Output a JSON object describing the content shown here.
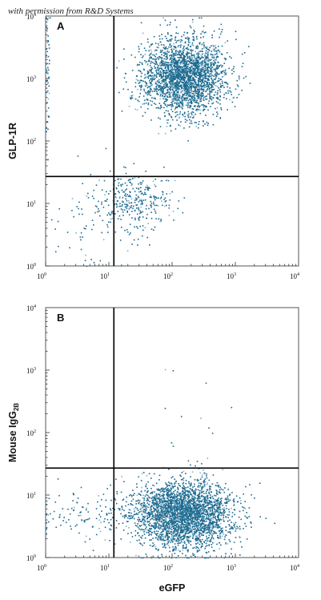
{
  "watermark": "with permission from R&D Systems",
  "colors": {
    "dot": "#1d6a8f",
    "dot_light": "#7fb3cc",
    "gate": "#000000",
    "frame": "#555555"
  },
  "chart_data": [
    {
      "type": "scatter",
      "panel_label": "A",
      "xlabel": "",
      "ylabel": "GLP-1R",
      "y_sub": "",
      "xscale": "log",
      "yscale": "log",
      "xlim": [
        1,
        10000
      ],
      "ylim": [
        1,
        10000
      ],
      "x_ticks": [
        {
          "base": "10",
          "exp": "0"
        },
        {
          "base": "10",
          "exp": "1"
        },
        {
          "base": "10",
          "exp": "2"
        },
        {
          "base": "10",
          "exp": "3"
        },
        {
          "base": "10",
          "exp": "4"
        }
      ],
      "y_ticks": [
        {
          "base": "10",
          "exp": "0"
        },
        {
          "base": "10",
          "exp": "1"
        },
        {
          "base": "10",
          "exp": "2"
        },
        {
          "base": "10",
          "exp": "3"
        },
        {
          "base": "10",
          "exp": "4"
        }
      ],
      "quadrant_gate": {
        "x": 12,
        "y": 27
      },
      "populations": [
        {
          "x_center": 150,
          "y_center": 1100,
          "x_spread": 0.33,
          "y_spread": 0.3,
          "count": 2600
        },
        {
          "x_center": 25,
          "y_center": 11,
          "x_spread": 0.3,
          "y_spread": 0.25,
          "count": 320
        },
        {
          "x_center": 6,
          "y_center": 4,
          "x_spread": 0.4,
          "y_spread": 0.4,
          "count": 60
        },
        {
          "x_center": 1.05,
          "y_center": 1500,
          "x_spread": 0.02,
          "y_spread": 0.5,
          "count": 50
        }
      ]
    },
    {
      "type": "scatter",
      "panel_label": "B",
      "xlabel": "eGFP",
      "ylabel": "Mouse IgG",
      "y_sub": "2B",
      "xscale": "log",
      "yscale": "log",
      "xlim": [
        1,
        10000
      ],
      "ylim": [
        1,
        10000
      ],
      "x_ticks": [
        {
          "base": "10",
          "exp": "0"
        },
        {
          "base": "10",
          "exp": "1"
        },
        {
          "base": "10",
          "exp": "2"
        },
        {
          "base": "10",
          "exp": "3"
        },
        {
          "base": "10",
          "exp": "4"
        }
      ],
      "y_ticks": [
        {
          "base": "10",
          "exp": "0"
        },
        {
          "base": "10",
          "exp": "1"
        },
        {
          "base": "10",
          "exp": "2"
        },
        {
          "base": "10",
          "exp": "3"
        },
        {
          "base": "10",
          "exp": "4"
        }
      ],
      "quadrant_gate": {
        "x": 12,
        "y": 27
      },
      "populations": [
        {
          "x_center": 150,
          "y_center": 5,
          "x_spread": 0.38,
          "y_spread": 0.26,
          "count": 3000
        },
        {
          "x_center": 6,
          "y_center": 5,
          "x_spread": 0.4,
          "y_spread": 0.2,
          "count": 130
        },
        {
          "x_center": 130,
          "y_center": 150,
          "x_spread": 0.3,
          "y_spread": 0.55,
          "count": 15
        }
      ]
    }
  ]
}
